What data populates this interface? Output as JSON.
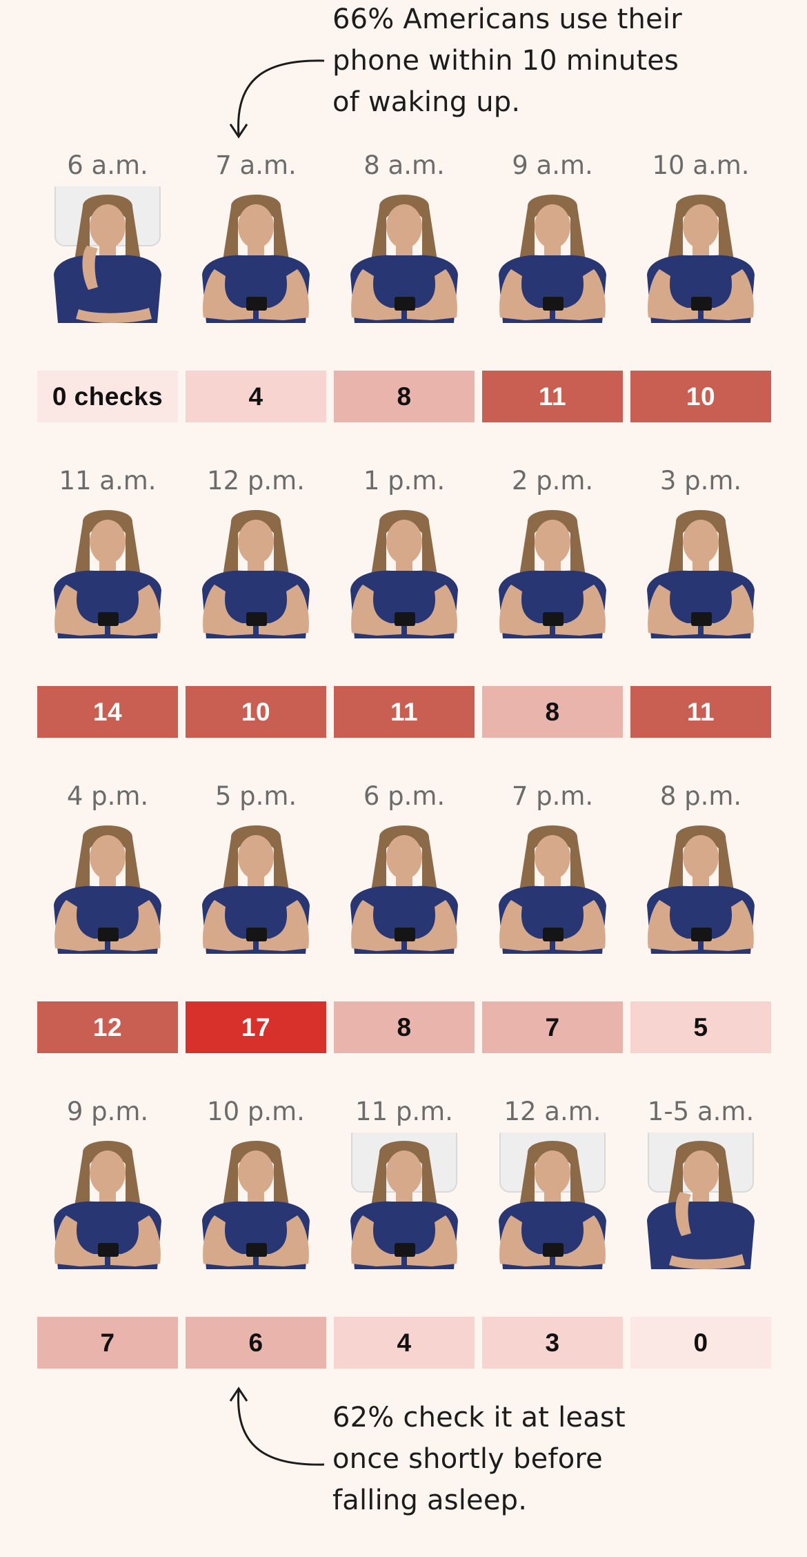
{
  "annotations": {
    "top": [
      "66% Americans use their",
      "phone within 10 minutes",
      "of waking up."
    ],
    "bottom": [
      "62% check it at least",
      "once shortly before",
      "falling asleep."
    ]
  },
  "colors": {
    "background": "#fcf5f0",
    "level_0": "#fbe7e3",
    "level_1": "#f7d4cf",
    "level_2": "#e9b4ab",
    "level_3": "#c95f52",
    "level_4": "#d8302b",
    "shirt": "#283773",
    "hair": "#8c6a48",
    "skin": "#d7a98b",
    "pillow": "#eeeeee"
  },
  "hours": [
    {
      "hour": "6 a.m.",
      "label": "0 checks",
      "checks": 0,
      "pose": "sleepy",
      "pillow": true
    },
    {
      "hour": "7 a.m.",
      "label": "4",
      "checks": 4,
      "pose": "phone",
      "pillow": false
    },
    {
      "hour": "8 a.m.",
      "label": "8",
      "checks": 8,
      "pose": "phone",
      "pillow": false
    },
    {
      "hour": "9 a.m.",
      "label": "11",
      "checks": 11,
      "pose": "phone",
      "pillow": false
    },
    {
      "hour": "10 a.m.",
      "label": "10",
      "checks": 10,
      "pose": "phone",
      "pillow": false
    },
    {
      "hour": "11 a.m.",
      "label": "14",
      "checks": 14,
      "pose": "phone",
      "pillow": false
    },
    {
      "hour": "12 p.m.",
      "label": "10",
      "checks": 10,
      "pose": "phone",
      "pillow": false
    },
    {
      "hour": "1 p.m.",
      "label": "11",
      "checks": 11,
      "pose": "phone",
      "pillow": false
    },
    {
      "hour": "2 p.m.",
      "label": "8",
      "checks": 8,
      "pose": "phone",
      "pillow": false
    },
    {
      "hour": "3 p.m.",
      "label": "11",
      "checks": 11,
      "pose": "phone",
      "pillow": false
    },
    {
      "hour": "4 p.m.",
      "label": "12",
      "checks": 12,
      "pose": "phone",
      "pillow": false
    },
    {
      "hour": "5 p.m.",
      "label": "17",
      "checks": 17,
      "pose": "phone",
      "pillow": false
    },
    {
      "hour": "6 p.m.",
      "label": "8",
      "checks": 8,
      "pose": "phone",
      "pillow": false
    },
    {
      "hour": "7 p.m.",
      "label": "7",
      "checks": 7,
      "pose": "phone",
      "pillow": false
    },
    {
      "hour": "8 p.m.",
      "label": "5",
      "checks": 5,
      "pose": "phone",
      "pillow": false
    },
    {
      "hour": "9 p.m.",
      "label": "7",
      "checks": 7,
      "pose": "phone",
      "pillow": false
    },
    {
      "hour": "10 p.m.",
      "label": "6",
      "checks": 6,
      "pose": "phone",
      "pillow": false
    },
    {
      "hour": "11 p.m.",
      "label": "4",
      "checks": 4,
      "pose": "phone",
      "pillow": true
    },
    {
      "hour": "12 a.m.",
      "label": "3",
      "checks": 3,
      "pose": "phone",
      "pillow": true
    },
    {
      "hour": "1-5 a.m.",
      "label": "0",
      "checks": 0,
      "pose": "sleepy",
      "pillow": true
    }
  ]
}
